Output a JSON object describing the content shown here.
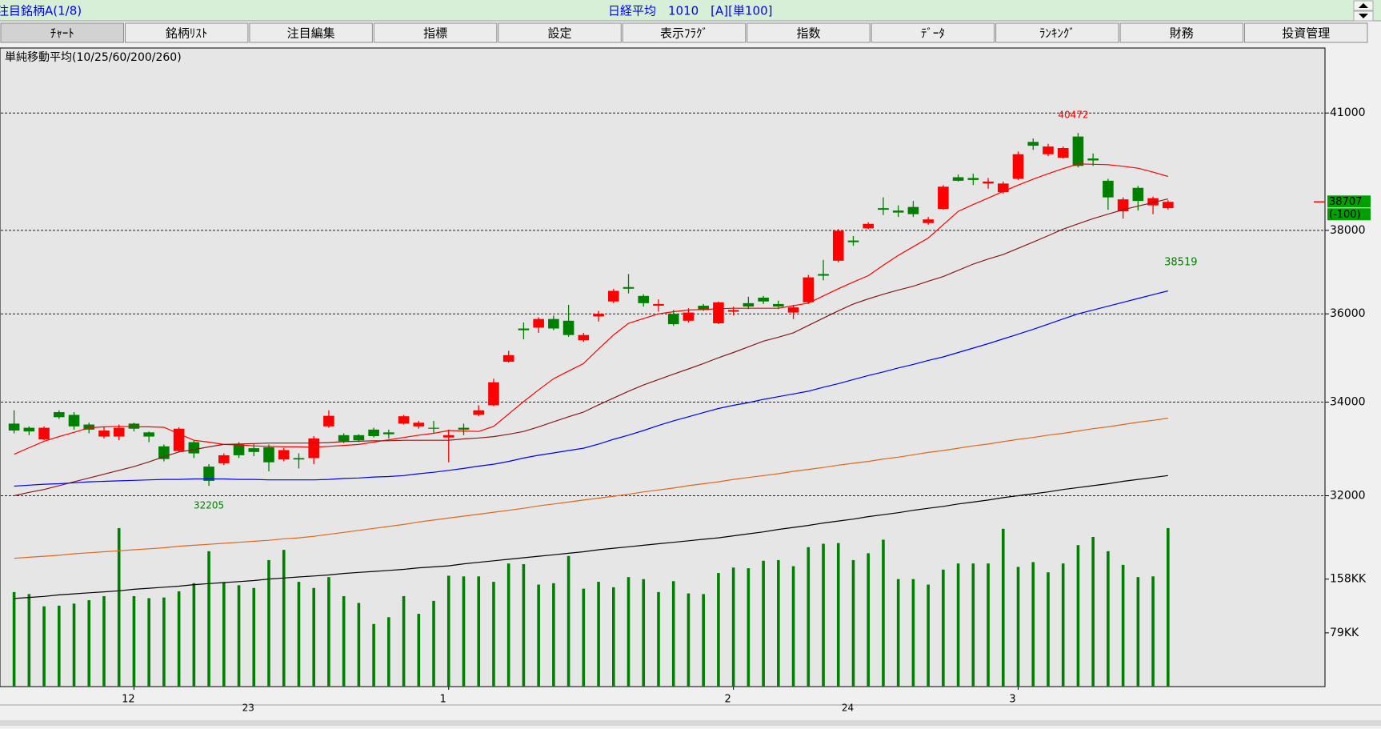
{
  "header": {
    "list": "注目銘柄A(1/8)",
    "symbol": "日経平均　1010　[A][単100]"
  },
  "tabs": [
    "ﾁｬｰﾄ",
    "銘柄ﾘｽﾄ",
    "注目編集",
    "指標",
    "設定",
    "表示ﾌﾗｸﾞ",
    "指数",
    "ﾃﾞｰﾀ",
    "ﾗﾝｷﾝｸﾞ",
    "財務",
    "投資管理"
  ],
  "selected_tab": 0,
  "chart_data": {
    "type": "candlestick",
    "indicator_label": "単純移動平均(10/25/60/200/260)",
    "categories": [
      null,
      null,
      null,
      null,
      null,
      null,
      null,
      null,
      "12",
      null,
      null,
      null,
      null,
      null,
      null,
      null,
      null,
      null,
      null,
      null,
      null,
      null,
      null,
      null,
      null,
      null,
      null,
      null,
      null,
      "1",
      null,
      null,
      null,
      null,
      null,
      null,
      null,
      null,
      null,
      null,
      null,
      null,
      null,
      null,
      null,
      null,
      null,
      null,
      "2",
      null,
      null,
      null,
      null,
      null,
      null,
      null,
      null,
      null,
      null,
      null,
      null,
      null,
      null,
      null,
      null,
      null,
      null,
      "3",
      null,
      null,
      null,
      null,
      null,
      null,
      null,
      null,
      null,
      null
    ],
    "year_labels": [
      null,
      null,
      null,
      null,
      null,
      null,
      null,
      null,
      null,
      null,
      null,
      null,
      null,
      null,
      null,
      null,
      "23",
      null,
      null,
      null,
      null,
      null,
      null,
      null,
      null,
      null,
      null,
      null,
      null,
      null,
      null,
      null,
      null,
      null,
      null,
      null,
      null,
      null,
      null,
      null,
      null,
      null,
      null,
      null,
      null,
      null,
      null,
      null,
      null,
      null,
      null,
      null,
      null,
      null,
      null,
      null,
      "24",
      null,
      null,
      null,
      null,
      null,
      null,
      null,
      null,
      null,
      null,
      null,
      null,
      null,
      null,
      null,
      null,
      null,
      null,
      null,
      null,
      null
    ],
    "open": [
      33530,
      33440,
      33190,
      33780,
      33720,
      33510,
      33250,
      33250,
      33530,
      33340,
      33040,
      32940,
      33130,
      32610,
      32680,
      33080,
      33000,
      33020,
      32760,
      32790,
      32790,
      33470,
      33280,
      33280,
      33400,
      33340,
      33530,
      33470,
      33440,
      33230,
      33440,
      33720,
      33930,
      34900,
      35660,
      35680,
      35880,
      35840,
      35390,
      35940,
      36290,
      36630,
      36420,
      36190,
      36000,
      35840,
      36190,
      35780,
      36050,
      36250,
      36380,
      36230,
      36030,
      36270,
      36940,
      37260,
      37750,
      38050,
      38550,
      38490,
      38580,
      38180,
      38530,
      39330,
      39310,
      39170,
      38950,
      39290,
      40240,
      39920,
      39830,
      40380,
      39810,
      39240,
      38470,
      39060,
      38620,
      38550
    ],
    "high": [
      33820,
      33470,
      33470,
      33820,
      33780,
      33550,
      33470,
      33510,
      33550,
      33360,
      33080,
      33450,
      33170,
      32660,
      32890,
      33130,
      33090,
      33080,
      33000,
      32890,
      33260,
      33820,
      33320,
      33300,
      33440,
      33400,
      33720,
      33590,
      33590,
      33400,
      33530,
      33930,
      34520,
      35150,
      35800,
      35920,
      35960,
      36210,
      35560,
      36070,
      36590,
      36940,
      36460,
      36340,
      36090,
      36130,
      36230,
      36290,
      36170,
      36400,
      36420,
      36310,
      36210,
      36920,
      37280,
      38030,
      37860,
      38200,
      38820,
      38620,
      38730,
      38330,
      39130,
      39400,
      39420,
      39310,
      39220,
      39990,
      40330,
      40190,
      40120,
      40472,
      39940,
      39290,
      38820,
      39110,
      38840,
      38750
    ],
    "low": [
      33320,
      33280,
      33170,
      33630,
      33400,
      33320,
      33210,
      33170,
      33360,
      33130,
      32720,
      32920,
      32790,
      32205,
      32640,
      32790,
      32830,
      32510,
      32720,
      32570,
      32660,
      33440,
      33110,
      33130,
      33230,
      33210,
      33510,
      33420,
      33320,
      32700,
      33280,
      33690,
      33910,
      34880,
      35410,
      35560,
      35620,
      35470,
      35350,
      35820,
      36250,
      36480,
      36170,
      36050,
      35720,
      35800,
      36070,
      35760,
      35960,
      36110,
      36230,
      36110,
      35880,
      36230,
      36790,
      37220,
      37620,
      38030,
      38380,
      38330,
      38330,
      38140,
      38510,
      39220,
      39130,
      39040,
      38910,
      39260,
      40030,
      39870,
      39810,
      39580,
      39620,
      38510,
      38290,
      38490,
      38400,
      38510
    ],
    "close": [
      33380,
      33360,
      33440,
      33670,
      33470,
      33400,
      33380,
      33440,
      33420,
      33250,
      32770,
      33420,
      32890,
      32310,
      32850,
      32850,
      32920,
      32700,
      32960,
      32760,
      33210,
      33700,
      33150,
      33170,
      33260,
      33300,
      33690,
      33550,
      33430,
      33280,
      33400,
      33820,
      34440,
      35050,
      35620,
      35880,
      35660,
      35510,
      35510,
      36000,
      36540,
      36590,
      36250,
      36230,
      35760,
      36030,
      36090,
      36270,
      36090,
      36170,
      36290,
      36170,
      36150,
      36860,
      36900,
      37990,
      37710,
      38160,
      38510,
      38440,
      38400,
      38270,
      39090,
      39240,
      39260,
      39220,
      39170,
      39920,
      40140,
      40120,
      40080,
      39620,
      39760,
      38820,
      38770,
      38730,
      38800,
      38707
    ],
    "up_color": "#ff0000",
    "down_color": "#008000",
    "moving_averages": [
      {
        "color": "#ff0000",
        "values": [
          32870,
          33010,
          33150,
          33250,
          33340,
          33440,
          33460,
          33470,
          33460,
          33460,
          33450,
          33310,
          33170,
          33130,
          33080,
          33070,
          33050,
          33040,
          33030,
          33030,
          33020,
          33040,
          33060,
          33080,
          33130,
          33180,
          33230,
          33280,
          33320,
          33380,
          33370,
          33360,
          33470,
          33740,
          34010,
          34270,
          34520,
          34690,
          34860,
          35190,
          35510,
          35780,
          35890,
          36000,
          36050,
          36090,
          36100,
          36120,
          36130,
          36130,
          36130,
          36130,
          36190,
          36250,
          36420,
          36590,
          36750,
          36900,
          37150,
          37390,
          37600,
          37810,
          38140,
          38470,
          38640,
          38800,
          38970,
          39130,
          39280,
          39420,
          39550,
          39670,
          39660,
          39650,
          39610,
          39560,
          39460,
          39350
        ]
      },
      {
        "color": "#8b1a1a",
        "values": [
          32000,
          32070,
          32130,
          32210,
          32290,
          32370,
          32450,
          32530,
          32610,
          32710,
          32820,
          32920,
          32970,
          33030,
          33080,
          33090,
          33100,
          33110,
          33110,
          33110,
          33110,
          33120,
          33140,
          33150,
          33160,
          33160,
          33170,
          33170,
          33170,
          33170,
          33200,
          33220,
          33250,
          33300,
          33360,
          33460,
          33570,
          33680,
          33780,
          33940,
          34090,
          34240,
          34380,
          34500,
          34620,
          34740,
          34860,
          34990,
          35110,
          35240,
          35370,
          35460,
          35560,
          35730,
          35900,
          36070,
          36230,
          36350,
          36460,
          36560,
          36650,
          36770,
          36880,
          37030,
          37180,
          37300,
          37410,
          37560,
          37710,
          37870,
          38030,
          38160,
          38290,
          38400,
          38510,
          38600,
          38690,
          38780
        ]
      },
      {
        "color": "#0000ff",
        "values": [
          32200,
          32220,
          32240,
          32250,
          32270,
          32290,
          32300,
          32310,
          32320,
          32330,
          32340,
          32340,
          32350,
          32350,
          32350,
          32340,
          32340,
          32330,
          32330,
          32330,
          32330,
          32340,
          32360,
          32370,
          32390,
          32400,
          32420,
          32460,
          32490,
          32530,
          32570,
          32620,
          32660,
          32720,
          32790,
          32850,
          32900,
          32950,
          33000,
          33090,
          33190,
          33280,
          33380,
          33490,
          33590,
          33680,
          33770,
          33860,
          33930,
          33990,
          34060,
          34120,
          34180,
          34240,
          34330,
          34410,
          34500,
          34590,
          34670,
          34760,
          34840,
          34930,
          35010,
          35110,
          35210,
          35310,
          35420,
          35530,
          35640,
          35760,
          35880,
          36000,
          36090,
          36180,
          36270,
          36360,
          36450,
          36540
        ]
      },
      {
        "color": "#e0681c",
        "values": [
          30730,
          30750,
          30770,
          30790,
          30820,
          30840,
          30860,
          30880,
          30900,
          30920,
          30940,
          30970,
          30990,
          31010,
          31030,
          31050,
          31070,
          31090,
          31120,
          31140,
          31170,
          31210,
          31250,
          31290,
          31330,
          31370,
          31410,
          31460,
          31500,
          31540,
          31580,
          31620,
          31660,
          31700,
          31740,
          31790,
          31830,
          31870,
          31910,
          31950,
          31990,
          32030,
          32080,
          32120,
          32160,
          32210,
          32250,
          32290,
          32340,
          32380,
          32420,
          32460,
          32510,
          32550,
          32590,
          32640,
          32680,
          32720,
          32770,
          32810,
          32860,
          32910,
          32950,
          33000,
          33050,
          33090,
          33140,
          33190,
          33230,
          33280,
          33320,
          33370,
          33420,
          33460,
          33510,
          33560,
          33600,
          33650
        ]
      },
      {
        "color": "#000000",
        "values": [
          29940,
          29960,
          29980,
          30010,
          30030,
          30050,
          30070,
          30090,
          30120,
          30140,
          30160,
          30180,
          30210,
          30230,
          30250,
          30270,
          30290,
          30320,
          30340,
          30360,
          30380,
          30400,
          30430,
          30450,
          30470,
          30490,
          30510,
          30540,
          30560,
          30580,
          30620,
          30650,
          30680,
          30710,
          30740,
          30770,
          30800,
          30830,
          30860,
          30900,
          30930,
          30960,
          30990,
          31020,
          31050,
          31080,
          31110,
          31140,
          31180,
          31220,
          31260,
          31310,
          31350,
          31390,
          31440,
          31480,
          31520,
          31570,
          31610,
          31650,
          31700,
          31740,
          31780,
          31830,
          31870,
          31910,
          31960,
          32000,
          32040,
          32080,
          32130,
          32170,
          32210,
          32250,
          32300,
          32340,
          32380,
          32420
        ]
      }
    ],
    "ylim": [
      28280,
      42740
    ],
    "yticks": [
      32000,
      34000,
      36000,
      38000,
      41000
    ],
    "log_scale": true,
    "grid": true,
    "volume": {
      "color": "#008000",
      "values": [
        139,
        136,
        118,
        119,
        122,
        127,
        133,
        233,
        133,
        130,
        131,
        140,
        152,
        199,
        153,
        149,
        145,
        186,
        201,
        154,
        145,
        161,
        133,
        123,
        92,
        102,
        133,
        107,
        126,
        163,
        162,
        162,
        154,
        181,
        180,
        150,
        152,
        192,
        144,
        154,
        146,
        161,
        158,
        139,
        155,
        137,
        136,
        167,
        175,
        174,
        185,
        186,
        177,
        205,
        210,
        211,
        186,
        196,
        216,
        158,
        158,
        150,
        172,
        181,
        181,
        181,
        232,
        176,
        183,
        168,
        181,
        208,
        220,
        199,
        179,
        161,
        162,
        233
      ],
      "ylim": [
        0,
        300
      ],
      "yticks": [
        {
          "value": 79,
          "label": "79KK"
        },
        {
          "value": 158,
          "label": "158KK"
        }
      ]
    },
    "annotations": {
      "high": 40472,
      "low": 32205,
      "ma_value": 38519,
      "last": 38707,
      "change": "(-100)"
    }
  }
}
